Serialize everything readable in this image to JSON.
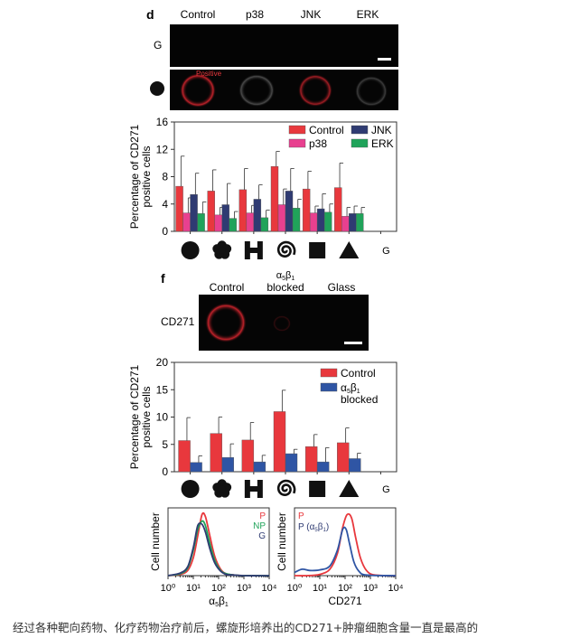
{
  "panel_d": {
    "letter": "d",
    "columns": [
      "Control",
      "p38",
      "JNK",
      "ERK"
    ],
    "row_label_glass": "G",
    "positive_label": "Positive"
  },
  "panel_f": {
    "letter": "f",
    "columns": [
      "Control",
      "α5β1 blocked",
      "Glass"
    ],
    "row_label": "CD271"
  },
  "chart_data": [
    {
      "type": "bar",
      "ylabel": "Percentage of CD271 positive cells",
      "ylim": [
        0,
        16
      ],
      "yticks": [
        0,
        4,
        8,
        12,
        16
      ],
      "categories": [
        "circle",
        "flower",
        "H-shape",
        "spiral",
        "square",
        "triangle",
        "G"
      ],
      "legend_position": "top-right",
      "series": [
        {
          "name": "Control",
          "color": "#e8383d",
          "values": [
            6.6,
            5.9,
            6.1,
            9.5,
            6.2,
            6.4,
            null
          ],
          "errors": [
            4.4,
            3.1,
            3.1,
            2.2,
            2.6,
            3.6,
            null
          ]
        },
        {
          "name": "p38",
          "color": "#e8408f",
          "values": [
            2.7,
            2.4,
            2.7,
            3.9,
            2.7,
            2.2,
            null
          ],
          "errors": [
            2.2,
            1.1,
            1.1,
            2.3,
            1.0,
            1.3,
            null
          ]
        },
        {
          "name": "JNK",
          "color": "#2f3b72",
          "values": [
            5.4,
            3.9,
            4.7,
            5.9,
            3.3,
            2.6,
            null
          ],
          "errors": [
            3.1,
            3.1,
            2.1,
            3.3,
            2.2,
            1.1,
            null
          ]
        },
        {
          "name": "ERK",
          "color": "#20a35a",
          "values": [
            2.6,
            1.9,
            2.0,
            3.4,
            2.8,
            2.6,
            null
          ],
          "errors": [
            1.7,
            1.0,
            1.1,
            1.3,
            1.2,
            0.9,
            null
          ]
        }
      ]
    },
    {
      "type": "bar",
      "ylabel": "Percentage of CD271 positive cells",
      "ylim": [
        0,
        20
      ],
      "yticks": [
        0,
        5,
        10,
        15,
        20
      ],
      "categories": [
        "circle",
        "flower",
        "H-shape",
        "spiral",
        "square",
        "triangle",
        "G"
      ],
      "legend_position": "top-right",
      "series": [
        {
          "name": "Control",
          "color": "#e8383d",
          "values": [
            5.7,
            7.0,
            5.8,
            11.0,
            4.6,
            5.3,
            null
          ],
          "errors": [
            4.2,
            3.0,
            3.2,
            3.9,
            2.2,
            2.7,
            null
          ]
        },
        {
          "name": "α5β1 blocked",
          "color": "#2f55a4",
          "values": [
            1.7,
            2.6,
            1.8,
            3.3,
            1.8,
            2.4,
            null
          ],
          "errors": [
            1.2,
            2.5,
            1.2,
            0.8,
            2.6,
            1.0,
            null
          ]
        }
      ]
    },
    {
      "type": "line",
      "ylabel": "Cell number",
      "xlabel": "α5β1",
      "xscale": "log",
      "xlim": [
        1,
        10000
      ],
      "xticks": [
        "10⁰",
        "10¹",
        "10²",
        "10³",
        "10⁴"
      ],
      "legend_position": "top-right",
      "series": [
        {
          "name": "P",
          "color": "#e8383d",
          "x": [
            1,
            3,
            6,
            10,
            15,
            22,
            30,
            45,
            70,
            120,
            200,
            400,
            1000,
            10000
          ],
          "y": [
            0,
            0.02,
            0.08,
            0.28,
            0.62,
            0.95,
            0.92,
            0.62,
            0.3,
            0.1,
            0.03,
            0.01,
            0,
            0
          ]
        },
        {
          "name": "NP",
          "color": "#20a35a",
          "x": [
            1,
            3,
            6,
            10,
            15,
            22,
            30,
            45,
            70,
            120,
            200,
            400,
            1000,
            10000
          ],
          "y": [
            0,
            0.03,
            0.12,
            0.4,
            0.72,
            0.85,
            0.78,
            0.5,
            0.24,
            0.08,
            0.03,
            0.01,
            0,
            0
          ]
        },
        {
          "name": "G",
          "color": "#2f3b72",
          "x": [
            1,
            3,
            6,
            10,
            15,
            22,
            30,
            45,
            70,
            120,
            200,
            400,
            1000,
            10000
          ],
          "y": [
            0,
            0.04,
            0.14,
            0.44,
            0.78,
            0.8,
            0.68,
            0.42,
            0.2,
            0.07,
            0.02,
            0.01,
            0,
            0
          ]
        }
      ]
    },
    {
      "type": "line",
      "ylabel": "Cell number",
      "xlabel": "CD271",
      "xscale": "log",
      "xlim": [
        1,
        10000
      ],
      "xticks": [
        "10⁰",
        "10¹",
        "10²",
        "10³",
        "10⁴"
      ],
      "legend_position": "top-left",
      "series": [
        {
          "name": "P",
          "color": "#e8383d",
          "x": [
            1,
            3,
            10,
            25,
            50,
            80,
            120,
            180,
            260,
            400,
            700,
            1500,
            10000
          ],
          "y": [
            0,
            0,
            0.02,
            0.1,
            0.35,
            0.75,
            0.95,
            0.9,
            0.6,
            0.28,
            0.08,
            0.01,
            0
          ]
        },
        {
          "name": "P (α5β1)",
          "color": "#2f55a4",
          "x": [
            1,
            2,
            4,
            10,
            25,
            50,
            80,
            110,
            150,
            220,
            350,
            700,
            10000
          ],
          "y": [
            0.05,
            0.1,
            0.08,
            0.09,
            0.15,
            0.4,
            0.72,
            0.72,
            0.5,
            0.22,
            0.07,
            0.01,
            0
          ]
        }
      ]
    }
  ],
  "caption": "经过各种靶向药物、化疗药物治疗前后，螺旋形培养出的CD271+肿瘤细胞含量一直是最高的"
}
